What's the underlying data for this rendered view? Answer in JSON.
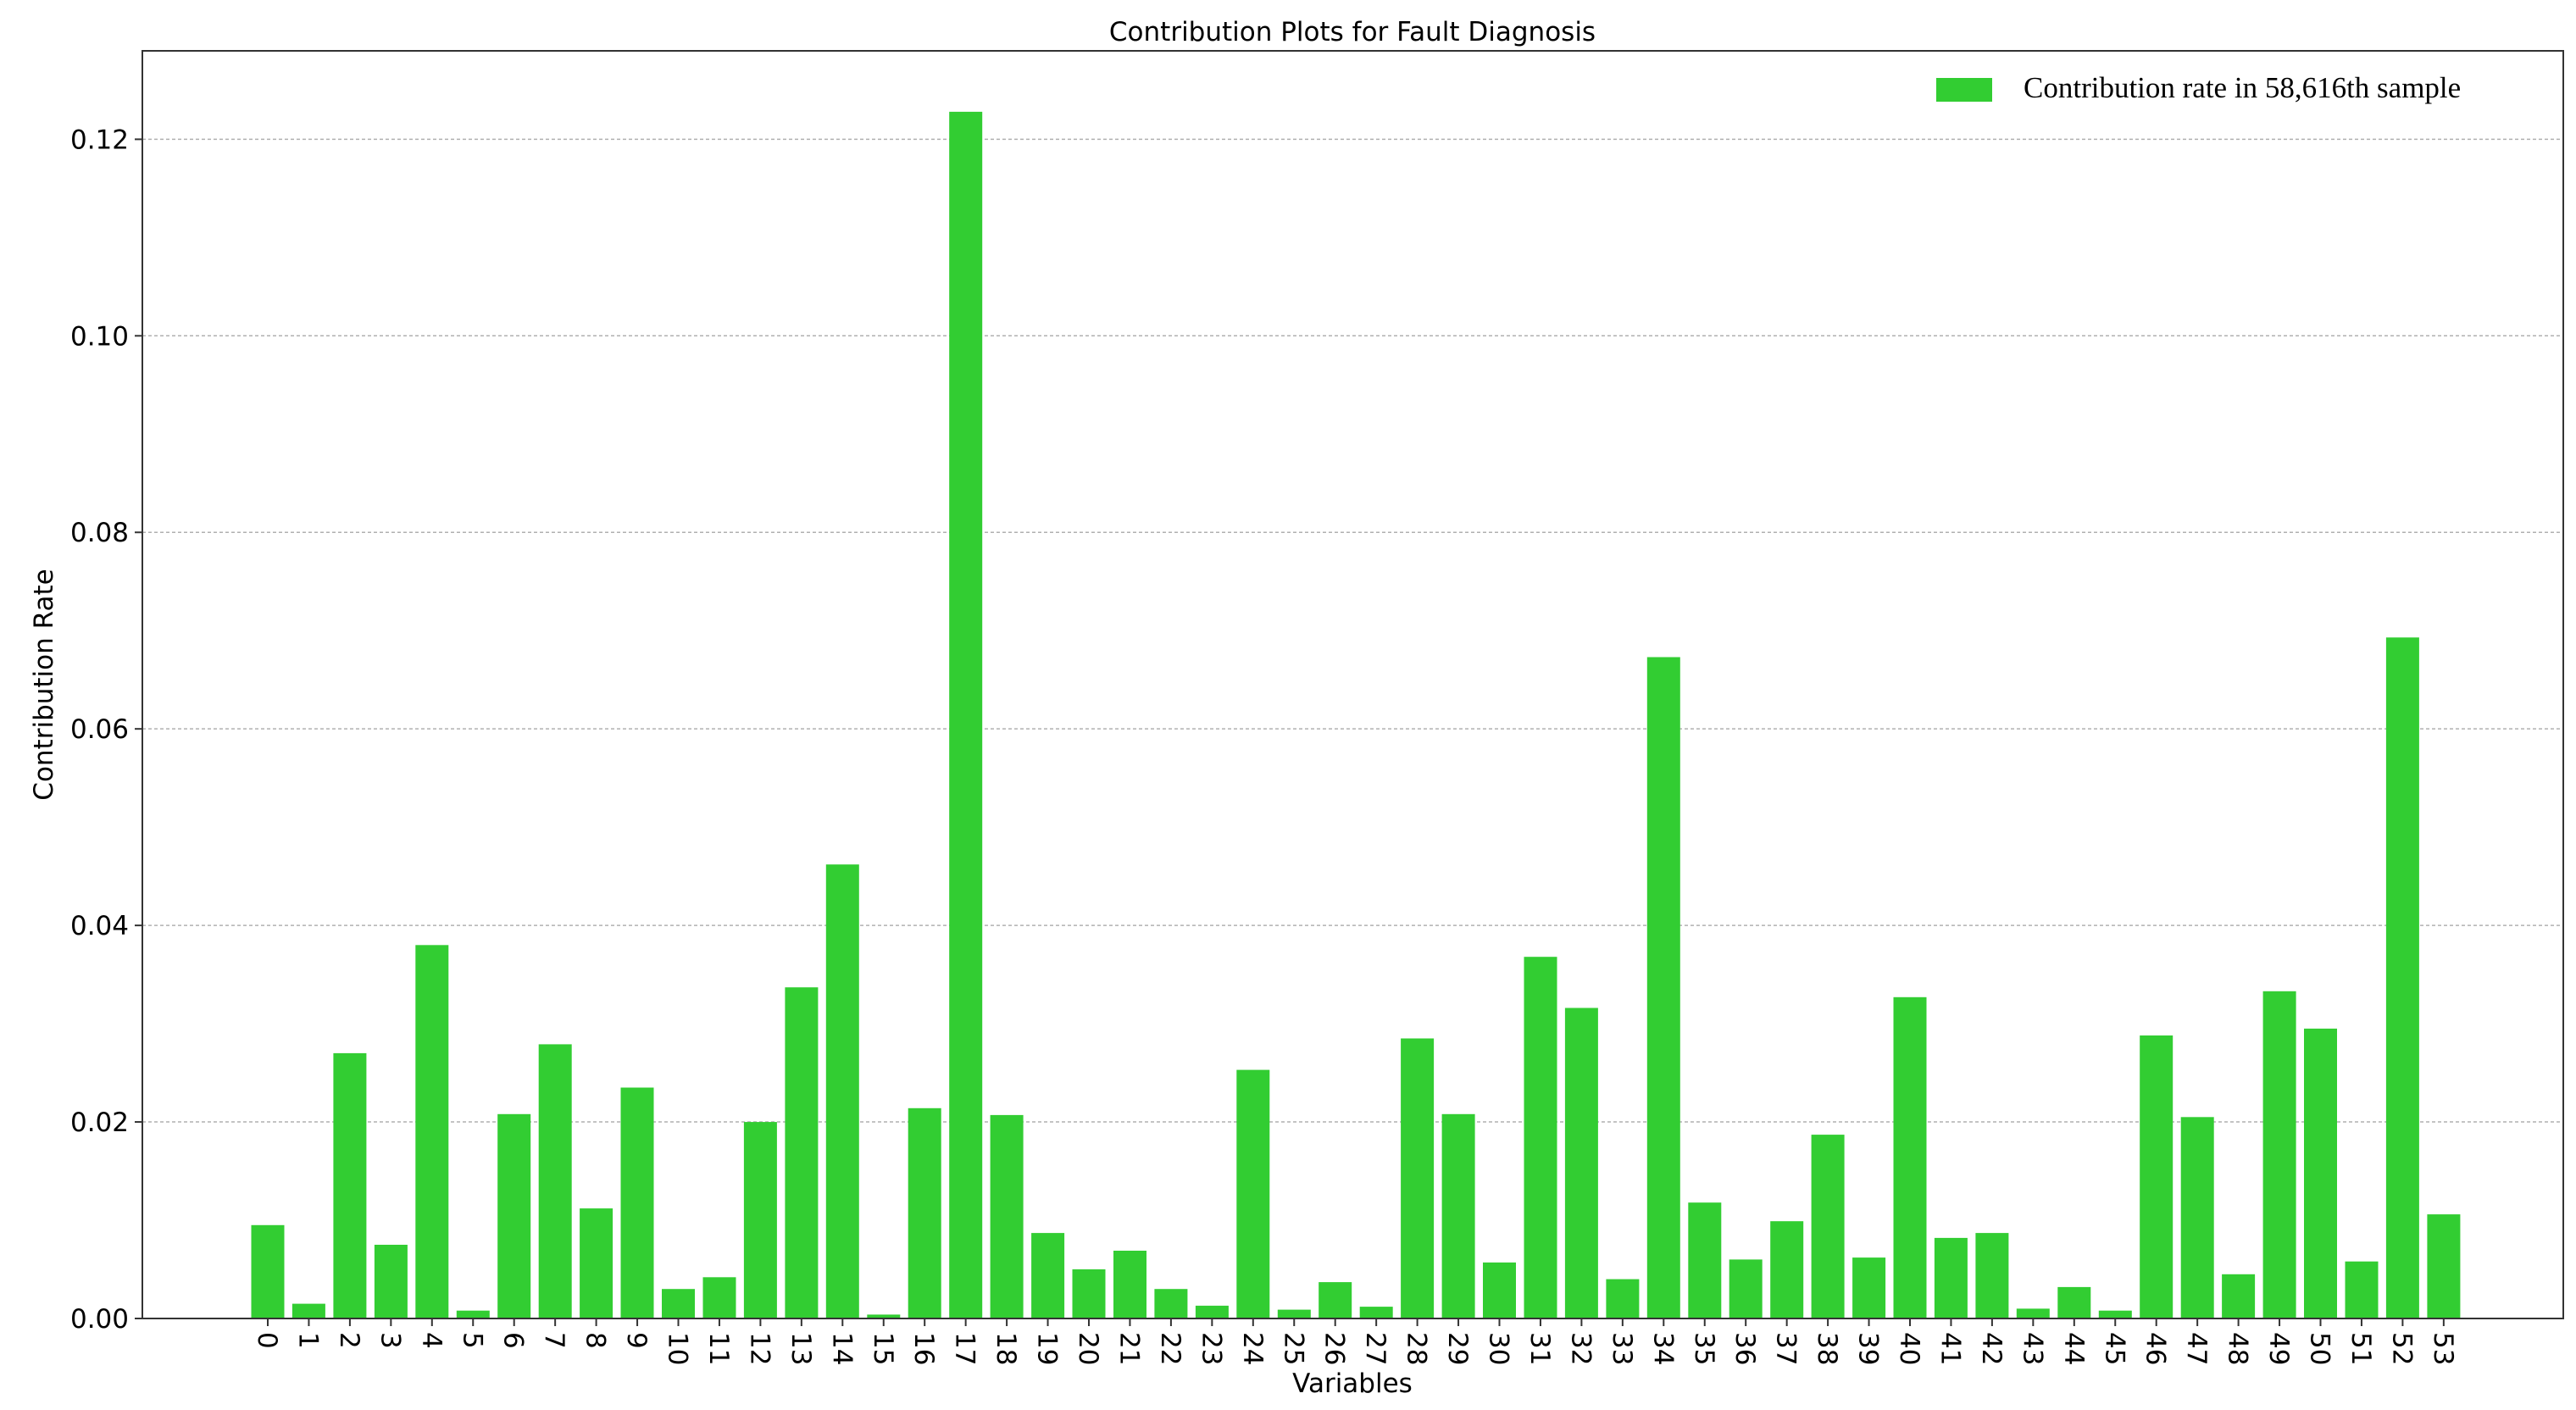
{
  "chart_data": {
    "type": "bar",
    "title": "Contribution Plots for Fault Diagnosis",
    "xlabel": "Variables",
    "ylabel": "Contribution Rate",
    "ylim": [
      0,
      0.129
    ],
    "yticks": [
      "0.00",
      "0.02",
      "0.04",
      "0.06",
      "0.08",
      "0.10",
      "0.12"
    ],
    "grid": "horizontal-dashed",
    "legend_position": "top-right",
    "bar_color": "#32cd32",
    "categories": [
      "0",
      "1",
      "2",
      "3",
      "4",
      "5",
      "6",
      "7",
      "8",
      "9",
      "10",
      "11",
      "12",
      "13",
      "14",
      "15",
      "16",
      "17",
      "18",
      "19",
      "20",
      "21",
      "22",
      "23",
      "24",
      "25",
      "26",
      "27",
      "28",
      "29",
      "30",
      "31",
      "32",
      "33",
      "34",
      "35",
      "36",
      "37",
      "38",
      "39",
      "40",
      "41",
      "42",
      "43",
      "44",
      "45",
      "46",
      "47",
      "48",
      "49",
      "50",
      "51",
      "52",
      "53"
    ],
    "series": [
      {
        "name": "Contribution rate in 58,616th sample",
        "values": [
          0.0095,
          0.0015,
          0.027,
          0.0075,
          0.038,
          0.0008,
          0.0208,
          0.0279,
          0.0112,
          0.0235,
          0.003,
          0.0042,
          0.02,
          0.0337,
          0.0462,
          0.0004,
          0.0214,
          0.1228,
          0.0207,
          0.0087,
          0.005,
          0.0069,
          0.003,
          0.0013,
          0.0253,
          0.0009,
          0.0037,
          0.0012,
          0.0285,
          0.0208,
          0.0057,
          0.0368,
          0.0316,
          0.004,
          0.0673,
          0.0118,
          0.006,
          0.0099,
          0.0187,
          0.0062,
          0.0327,
          0.0082,
          0.0087,
          0.001,
          0.0032,
          0.0008,
          0.0288,
          0.0205,
          0.0045,
          0.0333,
          0.0295,
          0.0058,
          0.0693,
          0.0106
        ]
      }
    ]
  }
}
